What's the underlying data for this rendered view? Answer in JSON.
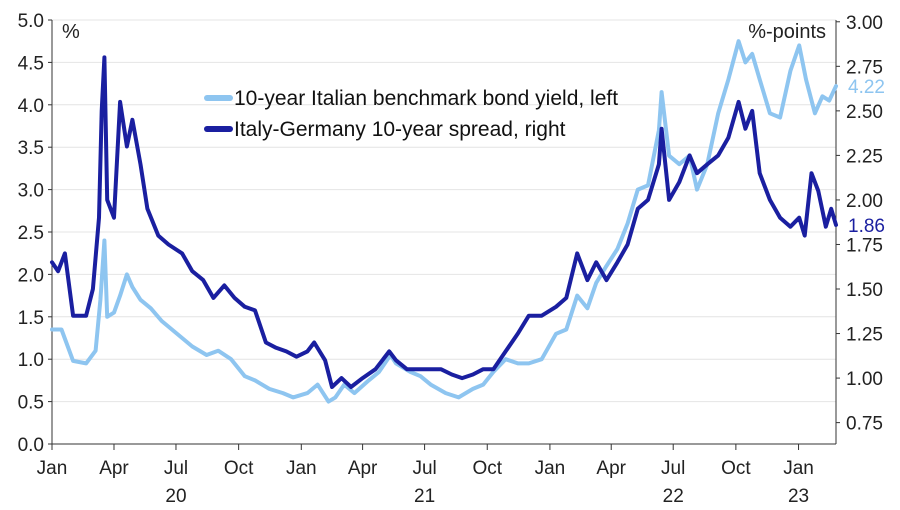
{
  "chart_data": {
    "type": "line",
    "left_axis": {
      "unit": "%",
      "ylim": [
        0,
        5.0
      ],
      "ticks": [
        "0.0",
        "0.5",
        "1.0",
        "1.5",
        "2.0",
        "2.5",
        "3.0",
        "3.5",
        "4.0",
        "4.5",
        "5.0"
      ]
    },
    "right_axis": {
      "unit": "%-points",
      "ylim": [
        0.63,
        3.01
      ],
      "ticks": [
        "0.75",
        "1.00",
        "1.25",
        "1.50",
        "1.75",
        "2.00",
        "2.25",
        "2.50",
        "2.75",
        "3.00"
      ]
    },
    "x_axis": {
      "xlim": [
        "2020-01-01",
        "2023-02-25"
      ],
      "month_ticks": [
        {
          "label": "Jan",
          "date": "2020-01-01"
        },
        {
          "label": "Apr",
          "date": "2020-04-01"
        },
        {
          "label": "Jul",
          "date": "2020-07-01"
        },
        {
          "label": "Oct",
          "date": "2020-10-01"
        },
        {
          "label": "Jan",
          "date": "2021-01-01"
        },
        {
          "label": "Apr",
          "date": "2021-04-01"
        },
        {
          "label": "Jul",
          "date": "2021-07-01"
        },
        {
          "label": "Oct",
          "date": "2021-10-01"
        },
        {
          "label": "Jan",
          "date": "2022-01-01"
        },
        {
          "label": "Apr",
          "date": "2022-04-01"
        },
        {
          "label": "Jul",
          "date": "2022-07-01"
        },
        {
          "label": "Oct",
          "date": "2022-10-01"
        },
        {
          "label": "Jan",
          "date": "2023-01-01"
        }
      ],
      "year_labels": [
        {
          "label": "20",
          "date": "2020-07-01"
        },
        {
          "label": "21",
          "date": "2021-07-01"
        },
        {
          "label": "22",
          "date": "2022-07-01"
        },
        {
          "label": "23",
          "date": "2023-01-01"
        }
      ]
    },
    "grid": true,
    "legend": "top-center",
    "series": [
      {
        "name": "10-year Italian benchmark bond yield, left",
        "axis": "left",
        "color": "#8ec5f0",
        "end_label": "4.22",
        "points": [
          [
            "2020-01-01",
            1.35
          ],
          [
            "2020-01-15",
            1.35
          ],
          [
            "2020-02-01",
            0.98
          ],
          [
            "2020-02-20",
            0.95
          ],
          [
            "2020-03-05",
            1.1
          ],
          [
            "2020-03-12",
            1.7
          ],
          [
            "2020-03-18",
            2.4
          ],
          [
            "2020-03-22",
            1.5
          ],
          [
            "2020-04-01",
            1.55
          ],
          [
            "2020-04-10",
            1.75
          ],
          [
            "2020-04-20",
            2.0
          ],
          [
            "2020-04-28",
            1.85
          ],
          [
            "2020-05-10",
            1.7
          ],
          [
            "2020-05-25",
            1.6
          ],
          [
            "2020-06-10",
            1.45
          ],
          [
            "2020-06-25",
            1.35
          ],
          [
            "2020-07-10",
            1.25
          ],
          [
            "2020-07-25",
            1.15
          ],
          [
            "2020-08-15",
            1.05
          ],
          [
            "2020-09-01",
            1.1
          ],
          [
            "2020-09-20",
            1.0
          ],
          [
            "2020-10-10",
            0.8
          ],
          [
            "2020-10-25",
            0.75
          ],
          [
            "2020-11-15",
            0.65
          ],
          [
            "2020-12-05",
            0.6
          ],
          [
            "2020-12-20",
            0.55
          ],
          [
            "2021-01-10",
            0.6
          ],
          [
            "2021-01-25",
            0.7
          ],
          [
            "2021-02-10",
            0.5
          ],
          [
            "2021-02-20",
            0.55
          ],
          [
            "2021-03-05",
            0.7
          ],
          [
            "2021-03-20",
            0.6
          ],
          [
            "2021-04-10",
            0.75
          ],
          [
            "2021-04-25",
            0.85
          ],
          [
            "2021-05-12",
            1.05
          ],
          [
            "2021-05-20",
            0.95
          ],
          [
            "2021-06-10",
            0.85
          ],
          [
            "2021-06-25",
            0.8
          ],
          [
            "2021-07-10",
            0.7
          ],
          [
            "2021-08-01",
            0.6
          ],
          [
            "2021-08-20",
            0.55
          ],
          [
            "2021-09-10",
            0.65
          ],
          [
            "2021-09-25",
            0.7
          ],
          [
            "2021-10-10",
            0.85
          ],
          [
            "2021-10-28",
            1.0
          ],
          [
            "2021-11-15",
            0.95
          ],
          [
            "2021-12-01",
            0.95
          ],
          [
            "2021-12-20",
            1.0
          ],
          [
            "2022-01-10",
            1.3
          ],
          [
            "2022-01-25",
            1.35
          ],
          [
            "2022-02-10",
            1.75
          ],
          [
            "2022-02-25",
            1.6
          ],
          [
            "2022-03-10",
            1.9
          ],
          [
            "2022-03-25",
            2.1
          ],
          [
            "2022-04-10",
            2.3
          ],
          [
            "2022-04-25",
            2.6
          ],
          [
            "2022-05-10",
            3.0
          ],
          [
            "2022-05-25",
            3.05
          ],
          [
            "2022-06-10",
            3.7
          ],
          [
            "2022-06-14",
            4.15
          ],
          [
            "2022-06-25",
            3.4
          ],
          [
            "2022-07-10",
            3.3
          ],
          [
            "2022-07-25",
            3.4
          ],
          [
            "2022-08-05",
            3.0
          ],
          [
            "2022-08-20",
            3.3
          ],
          [
            "2022-09-05",
            3.9
          ],
          [
            "2022-09-20",
            4.3
          ],
          [
            "2022-10-05",
            4.75
          ],
          [
            "2022-10-15",
            4.5
          ],
          [
            "2022-10-25",
            4.6
          ],
          [
            "2022-11-05",
            4.3
          ],
          [
            "2022-11-20",
            3.9
          ],
          [
            "2022-12-05",
            3.85
          ],
          [
            "2022-12-20",
            4.4
          ],
          [
            "2023-01-02",
            4.7
          ],
          [
            "2023-01-12",
            4.3
          ],
          [
            "2023-01-25",
            3.9
          ],
          [
            "2023-02-05",
            4.1
          ],
          [
            "2023-02-15",
            4.05
          ],
          [
            "2023-02-25",
            4.22
          ]
        ]
      },
      {
        "name": "Italy-Germany 10-year spread, right",
        "axis": "right",
        "color": "#1a1fa0",
        "end_label": "1.86",
        "points": [
          [
            "2020-01-01",
            1.65
          ],
          [
            "2020-01-10",
            1.6
          ],
          [
            "2020-01-20",
            1.7
          ],
          [
            "2020-02-01",
            1.35
          ],
          [
            "2020-02-20",
            1.35
          ],
          [
            "2020-03-01",
            1.5
          ],
          [
            "2020-03-10",
            1.9
          ],
          [
            "2020-03-14",
            2.5
          ],
          [
            "2020-03-18",
            2.8
          ],
          [
            "2020-03-22",
            2.0
          ],
          [
            "2020-04-01",
            1.9
          ],
          [
            "2020-04-10",
            2.55
          ],
          [
            "2020-04-20",
            2.3
          ],
          [
            "2020-04-28",
            2.45
          ],
          [
            "2020-05-10",
            2.2
          ],
          [
            "2020-05-20",
            1.95
          ],
          [
            "2020-06-05",
            1.8
          ],
          [
            "2020-06-20",
            1.75
          ],
          [
            "2020-07-10",
            1.7
          ],
          [
            "2020-07-25",
            1.6
          ],
          [
            "2020-08-10",
            1.55
          ],
          [
            "2020-08-25",
            1.45
          ],
          [
            "2020-09-10",
            1.52
          ],
          [
            "2020-09-25",
            1.45
          ],
          [
            "2020-10-10",
            1.4
          ],
          [
            "2020-10-25",
            1.38
          ],
          [
            "2020-11-10",
            1.2
          ],
          [
            "2020-11-25",
            1.17
          ],
          [
            "2020-12-10",
            1.15
          ],
          [
            "2020-12-25",
            1.12
          ],
          [
            "2021-01-10",
            1.15
          ],
          [
            "2021-01-20",
            1.2
          ],
          [
            "2021-02-05",
            1.1
          ],
          [
            "2021-02-15",
            0.95
          ],
          [
            "2021-03-01",
            1.0
          ],
          [
            "2021-03-15",
            0.95
          ],
          [
            "2021-04-01",
            1.0
          ],
          [
            "2021-04-20",
            1.05
          ],
          [
            "2021-05-10",
            1.15
          ],
          [
            "2021-05-20",
            1.1
          ],
          [
            "2021-06-05",
            1.05
          ],
          [
            "2021-06-20",
            1.05
          ],
          [
            "2021-07-10",
            1.05
          ],
          [
            "2021-07-25",
            1.05
          ],
          [
            "2021-08-10",
            1.02
          ],
          [
            "2021-08-25",
            1.0
          ],
          [
            "2021-09-10",
            1.02
          ],
          [
            "2021-09-25",
            1.05
          ],
          [
            "2021-10-10",
            1.05
          ],
          [
            "2021-10-28",
            1.15
          ],
          [
            "2021-11-15",
            1.25
          ],
          [
            "2021-12-01",
            1.35
          ],
          [
            "2021-12-20",
            1.35
          ],
          [
            "2022-01-10",
            1.4
          ],
          [
            "2022-01-25",
            1.45
          ],
          [
            "2022-02-10",
            1.7
          ],
          [
            "2022-02-25",
            1.55
          ],
          [
            "2022-03-10",
            1.65
          ],
          [
            "2022-03-25",
            1.55
          ],
          [
            "2022-04-10",
            1.65
          ],
          [
            "2022-04-25",
            1.75
          ],
          [
            "2022-05-10",
            1.95
          ],
          [
            "2022-05-25",
            2.0
          ],
          [
            "2022-06-10",
            2.2
          ],
          [
            "2022-06-14",
            2.4
          ],
          [
            "2022-06-25",
            2.0
          ],
          [
            "2022-07-10",
            2.1
          ],
          [
            "2022-07-25",
            2.25
          ],
          [
            "2022-08-05",
            2.15
          ],
          [
            "2022-08-20",
            2.2
          ],
          [
            "2022-09-05",
            2.25
          ],
          [
            "2022-09-20",
            2.35
          ],
          [
            "2022-10-05",
            2.55
          ],
          [
            "2022-10-15",
            2.4
          ],
          [
            "2022-10-25",
            2.5
          ],
          [
            "2022-11-05",
            2.15
          ],
          [
            "2022-11-20",
            2.0
          ],
          [
            "2022-12-05",
            1.9
          ],
          [
            "2022-12-20",
            1.85
          ],
          [
            "2023-01-02",
            1.9
          ],
          [
            "2023-01-10",
            1.8
          ],
          [
            "2023-01-20",
            2.15
          ],
          [
            "2023-01-30",
            2.05
          ],
          [
            "2023-02-10",
            1.85
          ],
          [
            "2023-02-18",
            1.95
          ],
          [
            "2023-02-25",
            1.86
          ]
        ]
      }
    ]
  }
}
